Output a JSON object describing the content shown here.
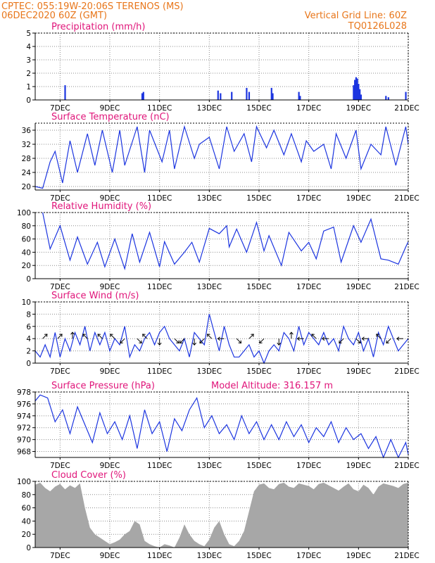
{
  "header": {
    "line1_left": "CPTEC:   055:19W-20:06S   TERENOS (MS)",
    "line2_left": "06DEC2020 60Z (GMT)",
    "line1_right": "Vertical Grid Line: 60Z",
    "line2_right": "TQ0126L028"
  },
  "colors": {
    "header": "#e8761a",
    "title": "#e0157a",
    "line": "#1c35e0",
    "cloud": "#a7a7a7",
    "grid": "#8c8c8c"
  },
  "x_ticks": [
    "7DEC",
    "9DEC",
    "11DEC",
    "13DEC",
    "15DEC",
    "17DEC",
    "19DEC",
    "21DEC"
  ],
  "chart_data": [
    {
      "type": "bar",
      "title": "Precipitation (mm/h)",
      "ylim": [
        0,
        5
      ],
      "yticks": [
        0,
        1,
        2,
        3,
        4,
        5
      ],
      "grid": true,
      "x_range": [
        0,
        15
      ],
      "series": [
        {
          "x": [
            1.2,
            4.3,
            4.35,
            7.35,
            7.45,
            7.9,
            8.5,
            8.6,
            9.5,
            9.55,
            10.6,
            10.65,
            12.8,
            12.85,
            12.9,
            12.95,
            13.0,
            13.05,
            13.1,
            14.1,
            14.2,
            14.9
          ],
          "values": [
            1.1,
            0.5,
            0.6,
            0.7,
            0.5,
            0.6,
            0.9,
            0.6,
            0.9,
            0.5,
            0.6,
            0.3,
            1.1,
            1.5,
            1.7,
            1.6,
            1.2,
            0.8,
            0.4,
            0.3,
            0.2,
            0.6
          ]
        }
      ]
    },
    {
      "type": "line",
      "title": "Surface Temperature (nC)",
      "ylim": [
        19,
        38
      ],
      "yticks": [
        20,
        24,
        28,
        32,
        36
      ],
      "grid": true,
      "x_range": [
        0,
        15
      ],
      "series": [
        {
          "x": [
            0,
            0.3,
            0.6,
            0.8,
            1.1,
            1.4,
            1.7,
            2.1,
            2.4,
            2.7,
            3.1,
            3.4,
            3.6,
            4.1,
            4.4,
            4.6,
            5.1,
            5.4,
            5.6,
            6.0,
            6.4,
            6.6,
            7.0,
            7.4,
            7.7,
            8.0,
            8.4,
            8.7,
            8.9,
            9.3,
            9.6,
            10.0,
            10.3,
            10.7,
            10.9,
            11.2,
            11.6,
            11.9,
            12.1,
            12.5,
            12.9,
            13.1,
            13.5,
            13.9,
            14.1,
            14.5,
            14.9,
            15.0
          ],
          "values": [
            20,
            19.5,
            27,
            30,
            21,
            33,
            24,
            35,
            26,
            36,
            24,
            36,
            26,
            37,
            24,
            36,
            27,
            36,
            25,
            37,
            28,
            32,
            34,
            25,
            37,
            30,
            35,
            27,
            37,
            31,
            36,
            29,
            35,
            27,
            33,
            30,
            32,
            25,
            35,
            28,
            36,
            25,
            32,
            29,
            37,
            26,
            37,
            32
          ]
        }
      ]
    },
    {
      "type": "line",
      "title": "Relative Humidity (%)",
      "ylim": [
        0,
        100
      ],
      "yticks": [
        0,
        20,
        40,
        60,
        80,
        100
      ],
      "grid": true,
      "x_range": [
        0,
        15
      ],
      "series": [
        {
          "x": [
            0.3,
            0.6,
            1.0,
            1.4,
            1.7,
            2.1,
            2.5,
            2.8,
            3.2,
            3.6,
            3.9,
            4.2,
            4.6,
            5.0,
            5.2,
            5.6,
            6.0,
            6.3,
            6.6,
            7.0,
            7.4,
            7.7,
            7.8,
            8.1,
            8.5,
            8.9,
            9.2,
            9.4,
            9.9,
            10.2,
            10.7,
            11.0,
            11.3,
            11.6,
            12.0,
            12.3,
            12.8,
            13.1,
            13.5,
            13.9,
            14.2,
            14.6,
            14.9,
            15.0
          ],
          "values": [
            100,
            45,
            80,
            28,
            63,
            22,
            55,
            18,
            60,
            15,
            68,
            25,
            70,
            18,
            56,
            22,
            40,
            55,
            25,
            76,
            68,
            80,
            48,
            75,
            40,
            85,
            42,
            65,
            20,
            70,
            42,
            55,
            30,
            72,
            78,
            25,
            80,
            55,
            90,
            30,
            28,
            22,
            48,
            56
          ]
        }
      ]
    },
    {
      "type": "line",
      "title": "Surface Wind (m/s)",
      "ylim": [
        0,
        10
      ],
      "yticks": [
        0,
        2,
        4,
        6,
        8,
        10
      ],
      "grid": true,
      "x_range": [
        0,
        15
      ],
      "series": [
        {
          "x": [
            0,
            0.2,
            0.4,
            0.6,
            0.8,
            1.0,
            1.2,
            1.4,
            1.6,
            1.8,
            2.0,
            2.2,
            2.4,
            2.6,
            2.8,
            3.0,
            3.2,
            3.4,
            3.6,
            3.8,
            4.0,
            4.2,
            4.4,
            4.6,
            4.8,
            5.0,
            5.2,
            5.4,
            5.6,
            5.8,
            6.0,
            6.2,
            6.4,
            6.6,
            6.8,
            7.0,
            7.2,
            7.4,
            7.6,
            7.8,
            8.0,
            8.2,
            8.4,
            8.6,
            8.8,
            9.0,
            9.2,
            9.4,
            9.6,
            9.8,
            10.0,
            10.2,
            10.4,
            10.6,
            10.8,
            11.0,
            11.2,
            11.4,
            11.6,
            11.8,
            12.0,
            12.2,
            12.4,
            12.6,
            12.8,
            13.0,
            13.2,
            13.4,
            13.6,
            13.8,
            14.0,
            14.2,
            14.4,
            14.6,
            14.8,
            15.0
          ],
          "values": [
            2,
            1,
            3,
            1,
            5,
            1,
            4,
            2,
            5,
            3,
            6,
            2,
            5,
            3,
            5,
            2,
            4,
            3,
            6,
            1,
            3,
            2,
            4,
            5,
            3,
            5,
            6,
            4,
            3,
            2,
            4,
            1,
            5,
            4,
            3,
            8,
            5,
            2,
            6,
            3,
            1,
            1,
            2,
            3,
            1,
            2,
            0,
            2,
            3,
            2,
            5,
            4,
            2,
            6,
            3,
            5,
            4,
            3,
            5,
            3,
            4,
            2,
            6,
            4,
            3,
            5,
            2,
            4,
            1,
            5,
            3,
            6,
            4,
            2,
            3,
            4
          ]
        }
      ],
      "arrows": [
        {
          "x": 0.3,
          "dir": "up-right"
        },
        {
          "x": 0.9,
          "dir": "up-right"
        },
        {
          "x": 1.5,
          "dir": "up"
        },
        {
          "x": 2.1,
          "dir": "up-left"
        },
        {
          "x": 2.7,
          "dir": "up-left"
        },
        {
          "x": 3.2,
          "dir": "up-left"
        },
        {
          "x": 3.6,
          "dir": "down-left"
        },
        {
          "x": 4.1,
          "dir": "down-right"
        },
        {
          "x": 4.5,
          "dir": "up-left"
        },
        {
          "x": 5.0,
          "dir": "down"
        },
        {
          "x": 5.6,
          "dir": "down-right"
        },
        {
          "x": 6.0,
          "dir": "down-left"
        },
        {
          "x": 6.4,
          "dir": "down"
        },
        {
          "x": 6.8,
          "dir": "down-left"
        },
        {
          "x": 7.1,
          "dir": "up-left"
        },
        {
          "x": 7.6,
          "dir": "left"
        },
        {
          "x": 8.1,
          "dir": "down-right"
        },
        {
          "x": 8.6,
          "dir": "up-right"
        },
        {
          "x": 9.2,
          "dir": "down-left"
        },
        {
          "x": 9.8,
          "dir": "down"
        },
        {
          "x": 10.3,
          "dir": "up"
        },
        {
          "x": 10.8,
          "dir": "left"
        },
        {
          "x": 11.3,
          "dir": "up-left"
        },
        {
          "x": 11.8,
          "dir": "left"
        },
        {
          "x": 12.4,
          "dir": "down-left"
        },
        {
          "x": 12.9,
          "dir": "down-right"
        },
        {
          "x": 13.4,
          "dir": "left"
        },
        {
          "x": 13.9,
          "dir": "up-left"
        },
        {
          "x": 14.3,
          "dir": "down-left"
        },
        {
          "x": 14.8,
          "dir": "left"
        }
      ]
    },
    {
      "type": "line",
      "title": "Surface Pressure (hPa)",
      "annotation": "Model Altitude: 316.157 m",
      "ylim": [
        967,
        978
      ],
      "yticks": [
        968,
        970,
        972,
        974,
        976,
        978
      ],
      "grid": true,
      "x_range": [
        0,
        15
      ],
      "series": [
        {
          "x": [
            0,
            0.2,
            0.5,
            0.8,
            1.1,
            1.4,
            1.7,
            2.0,
            2.3,
            2.6,
            2.9,
            3.2,
            3.5,
            3.8,
            4.1,
            4.4,
            4.7,
            5.0,
            5.3,
            5.6,
            5.9,
            6.2,
            6.5,
            6.8,
            7.1,
            7.4,
            7.7,
            8.0,
            8.3,
            8.6,
            8.9,
            9.2,
            9.5,
            9.8,
            10.1,
            10.4,
            10.7,
            11.0,
            11.3,
            11.6,
            11.9,
            12.2,
            12.5,
            12.8,
            13.1,
            13.4,
            13.7,
            14.0,
            14.3,
            14.6,
            14.9,
            15.0
          ],
          "values": [
            976.5,
            977.5,
            977,
            973,
            975,
            971,
            975.5,
            972.5,
            969.5,
            974.5,
            971,
            973,
            970,
            974,
            968.5,
            975,
            971,
            973,
            968,
            973.5,
            971.5,
            975,
            977,
            972,
            974,
            971,
            972.5,
            970,
            974,
            971,
            973,
            970,
            972.5,
            970,
            973,
            970.5,
            972.5,
            969.5,
            972,
            970.5,
            973,
            969.5,
            972,
            970,
            971,
            968.5,
            970.5,
            966,
            970,
            967,
            969.5,
            967.5
          ]
        }
      ]
    },
    {
      "type": "area",
      "title": "Cloud Cover (%)",
      "ylim": [
        0,
        100
      ],
      "yticks": [
        0,
        20,
        40,
        60,
        80,
        100
      ],
      "grid": true,
      "x_range": [
        0,
        15
      ],
      "series": [
        {
          "x": [
            0,
            0.2,
            0.4,
            0.6,
            0.8,
            1.0,
            1.2,
            1.4,
            1.6,
            1.8,
            2.0,
            2.2,
            2.4,
            2.6,
            2.8,
            3.0,
            3.2,
            3.4,
            3.6,
            3.8,
            4.0,
            4.2,
            4.4,
            4.6,
            4.8,
            5.0,
            5.2,
            5.4,
            5.6,
            5.8,
            6.0,
            6.2,
            6.4,
            6.6,
            6.8,
            7.0,
            7.2,
            7.4,
            7.6,
            7.8,
            8.0,
            8.2,
            8.4,
            8.6,
            8.8,
            9.0,
            9.2,
            9.4,
            9.6,
            9.8,
            10.0,
            10.2,
            10.4,
            10.6,
            10.8,
            11.0,
            11.2,
            11.4,
            11.6,
            11.8,
            12.0,
            12.2,
            12.4,
            12.6,
            12.8,
            13.0,
            13.2,
            13.4,
            13.6,
            13.8,
            14.0,
            14.2,
            14.4,
            14.6,
            14.8,
            15.0
          ],
          "values": [
            95,
            98,
            90,
            85,
            92,
            96,
            88,
            94,
            90,
            97,
            60,
            30,
            20,
            15,
            10,
            5,
            8,
            12,
            20,
            25,
            40,
            35,
            10,
            5,
            2,
            0,
            5,
            3,
            0,
            15,
            35,
            20,
            10,
            5,
            2,
            12,
            30,
            40,
            20,
            5,
            2,
            10,
            25,
            55,
            85,
            95,
            97,
            90,
            88,
            96,
            98,
            92,
            90,
            97,
            95,
            93,
            88,
            96,
            98,
            94,
            90,
            86,
            92,
            97,
            88,
            85,
            95,
            90,
            80,
            92,
            97,
            95,
            93,
            90,
            96,
            98
          ]
        }
      ]
    }
  ]
}
